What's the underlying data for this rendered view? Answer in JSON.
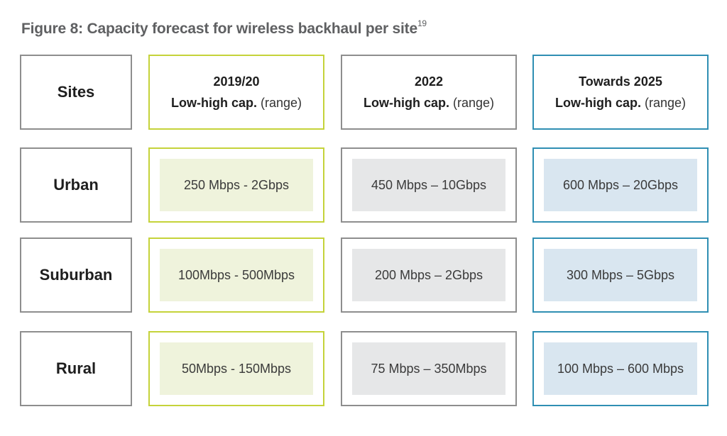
{
  "figure": {
    "title": "Figure 8: Capacity forecast for wireless backhaul per site",
    "footnote": "19"
  },
  "headers": {
    "sites": "Sites",
    "col_2019": {
      "year": "2019/20",
      "cap": "Low-high cap.",
      "range": "(range)"
    },
    "col_2022": {
      "year": "2022",
      "cap": "Low-high cap.",
      "range": "(range)"
    },
    "col_2025": {
      "year": "Towards 2025",
      "cap": "Low-high cap.",
      "range": "(range)"
    }
  },
  "rows": [
    {
      "site": "Urban",
      "v2019": "250 Mbps - 2Gbps",
      "v2022": "450 Mbps – 10Gbps",
      "v2025": "600 Mbps – 20Gbps"
    },
    {
      "site": "Suburban",
      "v2019": "100Mbps - 500Mbps",
      "v2022": "200 Mbps – 2Gbps",
      "v2025": "300 Mbps – 5Gbps"
    },
    {
      "site": "Rural",
      "v2019": "50Mbps - 150Mbps",
      "v2022": "75 Mbps – 350Mbps",
      "v2025": "100 Mbps – 600 Mbps"
    }
  ],
  "colors": {
    "border_2019": "#c5d33a",
    "border_2022": "#8e8e8e",
    "border_2025": "#2f8fb3",
    "fill_2019": "#eff3dc",
    "fill_2022": "#e6e7e8",
    "fill_2025": "#d9e6f0"
  }
}
